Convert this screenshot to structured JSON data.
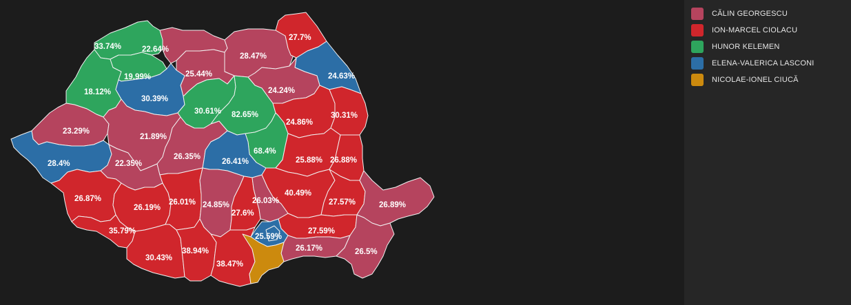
{
  "legend": [
    {
      "key": "georgescu",
      "label": "CĂLIN GEORGESCU",
      "color": "#b5445e"
    },
    {
      "key": "ciolacu",
      "label": "ION-MARCEL CIOLACU",
      "color": "#d0262c"
    },
    {
      "key": "kelemen",
      "label": "HUNOR KELEMEN",
      "color": "#2ea55d"
    },
    {
      "key": "lasconi",
      "label": "ELENA-VALERICA LASCONI",
      "color": "#2c6ea6"
    },
    {
      "key": "ciuca",
      "label": "NICOLAE-IONEL CIUCĂ",
      "color": "#cc8a0e"
    }
  ],
  "map": {
    "counties": [
      {
        "id": "satu-mare",
        "winner": "kelemen",
        "value": "33.74%"
      },
      {
        "id": "maramures",
        "winner": "georgescu",
        "value": "22.64%"
      },
      {
        "id": "suceava",
        "winner": "georgescu",
        "value": "28.47%"
      },
      {
        "id": "botosani",
        "winner": "ciolacu",
        "value": "27.7%"
      },
      {
        "id": "bihor",
        "winner": "kelemen",
        "value": "18.12%"
      },
      {
        "id": "salaj",
        "winner": "kelemen",
        "value": "19.99%"
      },
      {
        "id": "bistrita",
        "winner": "georgescu",
        "value": "25.44%"
      },
      {
        "id": "iasi",
        "winner": "lasconi",
        "value": "24.63%"
      },
      {
        "id": "neamt",
        "winner": "georgescu",
        "value": "24.24%"
      },
      {
        "id": "cluj",
        "winner": "lasconi",
        "value": "30.39%"
      },
      {
        "id": "mures",
        "winner": "kelemen",
        "value": "30.61%"
      },
      {
        "id": "harghita",
        "winner": "kelemen",
        "value": "82.65%"
      },
      {
        "id": "bacau",
        "winner": "ciolacu",
        "value": "24.86%"
      },
      {
        "id": "vaslui",
        "winner": "ciolacu",
        "value": "30.31%"
      },
      {
        "id": "arad",
        "winner": "georgescu",
        "value": "23.29%"
      },
      {
        "id": "alba",
        "winner": "georgescu",
        "value": "21.89%"
      },
      {
        "id": "covasna",
        "winner": "kelemen",
        "value": "68.4%"
      },
      {
        "id": "timis",
        "winner": "lasconi",
        "value": "28.4%"
      },
      {
        "id": "hunedoara",
        "winner": "georgescu",
        "value": "22.35%"
      },
      {
        "id": "sibiu",
        "winner": "georgescu",
        "value": "26.35%"
      },
      {
        "id": "brasov",
        "winner": "lasconi",
        "value": "26.41%"
      },
      {
        "id": "vrancea",
        "winner": "ciolacu",
        "value": "25.88%"
      },
      {
        "id": "galati",
        "winner": "ciolacu",
        "value": "26.88%"
      },
      {
        "id": "caras",
        "winner": "ciolacu",
        "value": "26.87%"
      },
      {
        "id": "buzau",
        "winner": "ciolacu",
        "value": "40.49%"
      },
      {
        "id": "braila",
        "winner": "ciolacu",
        "value": "27.57%"
      },
      {
        "id": "tulcea",
        "winner": "georgescu",
        "value": "26.89%"
      },
      {
        "id": "gorj",
        "winner": "ciolacu",
        "value": "26.19%"
      },
      {
        "id": "valcea",
        "winner": "ciolacu",
        "value": "26.01%"
      },
      {
        "id": "arges",
        "winner": "georgescu",
        "value": "24.85%"
      },
      {
        "id": "dambovita",
        "winner": "ciolacu",
        "value": "27.6%"
      },
      {
        "id": "prahova",
        "winner": "georgescu",
        "value": "26.03%"
      },
      {
        "id": "mehedinti",
        "winner": "ciolacu",
        "value": "35.79%"
      },
      {
        "id": "ialomita",
        "winner": "ciolacu",
        "value": "27.59%"
      },
      {
        "id": "ilfov",
        "winner": "lasconi",
        "value": "25.59%"
      },
      {
        "id": "dolj",
        "winner": "ciolacu",
        "value": "30.43%"
      },
      {
        "id": "olt",
        "winner": "ciolacu",
        "value": "38.94%"
      },
      {
        "id": "calarasi",
        "winner": "georgescu",
        "value": "26.17%"
      },
      {
        "id": "constanta",
        "winner": "georgescu",
        "value": "26.5%"
      },
      {
        "id": "teleorman",
        "winner": "ciolacu",
        "value": "38.47%"
      },
      {
        "id": "giurgiu",
        "winner": "ciuca",
        "winner_note": "",
        "value": ""
      },
      {
        "id": "bucuresti",
        "winner": "lasconi",
        "value": ""
      }
    ]
  }
}
